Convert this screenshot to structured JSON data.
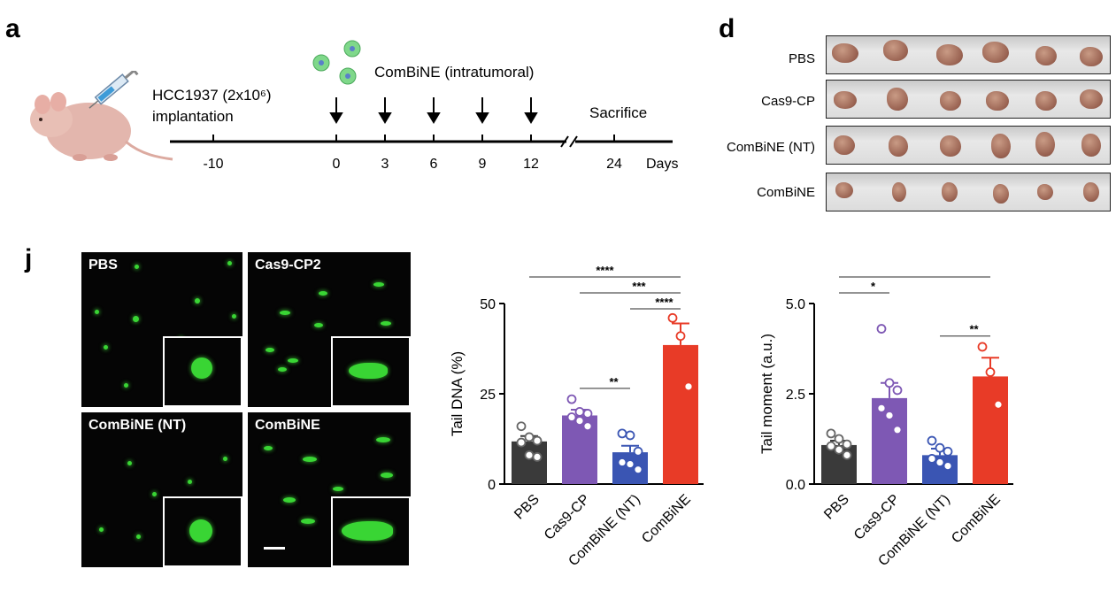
{
  "panels": {
    "a": "a",
    "d": "d",
    "j": "j"
  },
  "timeline": {
    "implantation_label": "HCC1937 (2x10⁶)\nimplantation",
    "treatment_label": "ComBiNE (intratumoral)",
    "sacrifice_label": "Sacrifice",
    "ticks": [
      "-10",
      "0",
      "3",
      "6",
      "9",
      "12",
      "24"
    ],
    "unit": "Days",
    "arrow_days": [
      "0",
      "3",
      "6",
      "9",
      "12"
    ]
  },
  "tumor_photos": {
    "rows": [
      {
        "label": "PBS"
      },
      {
        "label": "Cas9-CP"
      },
      {
        "label": "ComBiNE (NT)"
      },
      {
        "label": "ComBiNE"
      }
    ]
  },
  "comet_images": [
    {
      "label": "PBS"
    },
    {
      "label": "Cas9-CP2"
    },
    {
      "label": "ComBiNE (NT)"
    },
    {
      "label": "ComBiNE"
    }
  ],
  "colors": {
    "PBS": "#3a3a3a",
    "Cas9-CP": "#7e58b4",
    "ComBiNE (NT)": "#3a55b3",
    "ComBiNE": "#e83b27",
    "comet": "#39d534"
  },
  "chart_data": [
    {
      "type": "bar",
      "categories": [
        "PBS",
        "Cas9-CP",
        "ComBiNE (NT)",
        "ComBiNE"
      ],
      "values": [
        11.8,
        19.0,
        8.8,
        38.5
      ],
      "errors": [
        1.5,
        1.6,
        1.8,
        6.0
      ],
      "points": [
        [
          16,
          13,
          12,
          11.5,
          8,
          7.5
        ],
        [
          23.5,
          20,
          19.5,
          18.5,
          17.5,
          16
        ],
        [
          14,
          13.5,
          9,
          6,
          5.5,
          4
        ],
        [
          46,
          41,
          27
        ]
      ],
      "ylabel": "Tail DNA (%)",
      "ylim": [
        0,
        50
      ],
      "yticks": [
        "0",
        "25",
        "50"
      ],
      "significance": [
        {
          "from": 0,
          "to": 3,
          "label": "****"
        },
        {
          "from": 1,
          "to": 3,
          "label": "***"
        },
        {
          "from": 2,
          "to": 3,
          "label": "****"
        },
        {
          "from": 1,
          "to": 2,
          "label": "**"
        }
      ]
    },
    {
      "type": "bar",
      "categories": [
        "PBS",
        "Cas9-CP",
        "ComBiNE (NT)",
        "ComBiNE"
      ],
      "values": [
        1.08,
        2.38,
        0.8,
        2.98
      ],
      "errors": [
        0.12,
        0.42,
        0.18,
        0.52
      ],
      "points": [
        [
          1.4,
          1.25,
          1.1,
          1.05,
          0.95,
          0.8
        ],
        [
          4.3,
          2.8,
          2.6,
          2.1,
          1.9,
          1.5
        ],
        [
          1.2,
          1.0,
          0.9,
          0.7,
          0.6,
          0.5
        ],
        [
          3.8,
          3.1,
          2.2
        ]
      ],
      "ylabel": "Tail moment (a.u.)",
      "ylim": [
        0,
        5
      ],
      "yticks": [
        "0.0",
        "2.5",
        "5.0"
      ],
      "significance": [
        {
          "from": 0,
          "to": 3,
          "label": ""
        },
        {
          "from": 0,
          "to": 1,
          "label": "*"
        },
        {
          "from": 2,
          "to": 3,
          "label": "**"
        }
      ]
    }
  ]
}
